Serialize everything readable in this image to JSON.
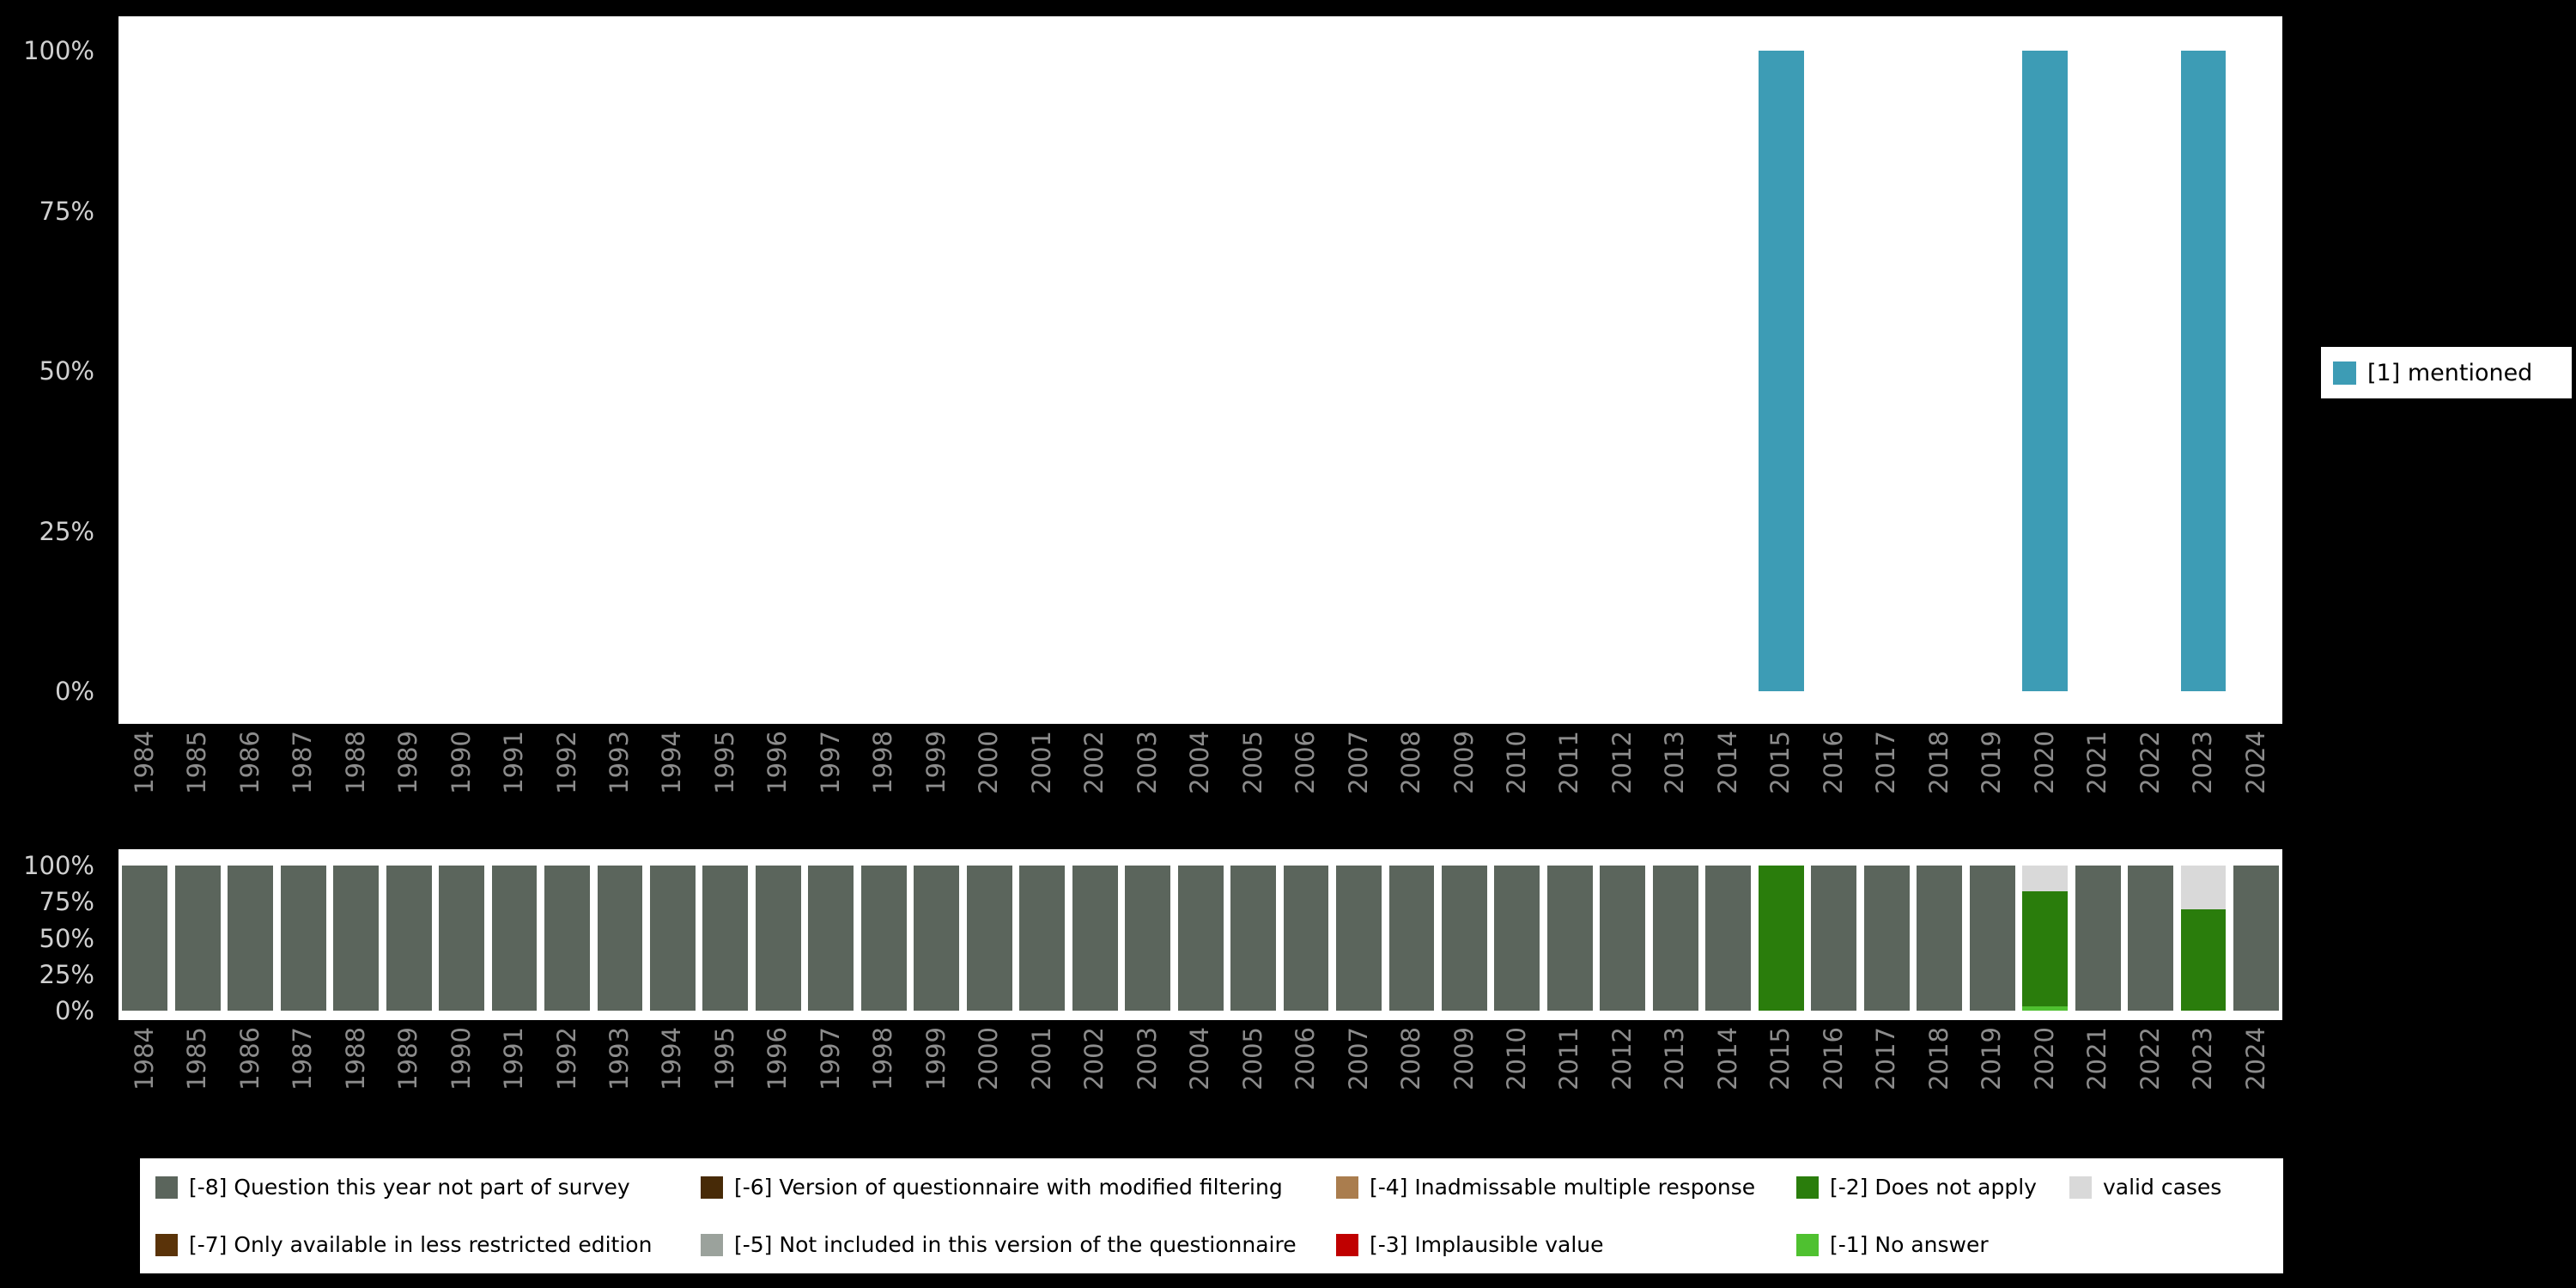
{
  "colors": {
    "mentioned": "#3d9cb5",
    "-8": "#5b655c",
    "-7": "#5a3309",
    "-6": "#472a07",
    "-5": "#9ba29c",
    "-4": "#aa7d4e",
    "-3": "#c00000",
    "-2": "#2a7d0c",
    "-1": "#4fc130",
    "valid": "#d9d9d9",
    "axis_text": "#d0d0d0",
    "year_text": "#8c8c8c",
    "page_background": "#000000",
    "panel_background": "#ffffff"
  },
  "top_legend": {
    "label": "[1] mentioned"
  },
  "chart_data": [
    {
      "type": "bar",
      "title": "",
      "xlabel": "",
      "ylabel": "",
      "ylim": [
        0,
        100
      ],
      "grid": false,
      "legend_position": "right",
      "y_ticks": [
        "100%",
        "75%",
        "50%",
        "25%",
        "0%"
      ],
      "categories": [
        "1984",
        "1985",
        "1986",
        "1987",
        "1988",
        "1989",
        "1990",
        "1991",
        "1992",
        "1993",
        "1994",
        "1995",
        "1996",
        "1997",
        "1998",
        "1999",
        "2000",
        "2001",
        "2002",
        "2003",
        "2004",
        "2005",
        "2006",
        "2007",
        "2008",
        "2009",
        "2010",
        "2011",
        "2012",
        "2013",
        "2014",
        "2015",
        "2016",
        "2017",
        "2018",
        "2019",
        "2020",
        "2021",
        "2022",
        "2023",
        "2024"
      ],
      "series": [
        {
          "name": "[1] mentioned",
          "color_key": "mentioned",
          "values": [
            0,
            0,
            0,
            0,
            0,
            0,
            0,
            0,
            0,
            0,
            0,
            0,
            0,
            0,
            0,
            0,
            0,
            0,
            0,
            0,
            0,
            0,
            0,
            0,
            0,
            0,
            0,
            0,
            0,
            0,
            0,
            100,
            0,
            0,
            0,
            0,
            100,
            0,
            0,
            100,
            0
          ]
        }
      ]
    },
    {
      "type": "stacked-bar",
      "title": "",
      "xlabel": "",
      "ylabel": "",
      "ylim": [
        0,
        100
      ],
      "grid": false,
      "y_ticks": [
        "100%",
        "75%",
        "50%",
        "25%",
        "0%"
      ],
      "categories": [
        "1984",
        "1985",
        "1986",
        "1987",
        "1988",
        "1989",
        "1990",
        "1991",
        "1992",
        "1993",
        "1994",
        "1995",
        "1996",
        "1997",
        "1998",
        "1999",
        "2000",
        "2001",
        "2002",
        "2003",
        "2004",
        "2005",
        "2006",
        "2007",
        "2008",
        "2009",
        "2010",
        "2011",
        "2012",
        "2013",
        "2014",
        "2015",
        "2016",
        "2017",
        "2018",
        "2019",
        "2020",
        "2021",
        "2022",
        "2023",
        "2024"
      ],
      "stacks": [
        [
          {
            "key": "-8",
            "pct": 100
          }
        ],
        [
          {
            "key": "-8",
            "pct": 100
          }
        ],
        [
          {
            "key": "-8",
            "pct": 100
          }
        ],
        [
          {
            "key": "-8",
            "pct": 100
          }
        ],
        [
          {
            "key": "-8",
            "pct": 100
          }
        ],
        [
          {
            "key": "-8",
            "pct": 100
          }
        ],
        [
          {
            "key": "-8",
            "pct": 100
          }
        ],
        [
          {
            "key": "-8",
            "pct": 100
          }
        ],
        [
          {
            "key": "-8",
            "pct": 100
          }
        ],
        [
          {
            "key": "-8",
            "pct": 100
          }
        ],
        [
          {
            "key": "-8",
            "pct": 100
          }
        ],
        [
          {
            "key": "-8",
            "pct": 100
          }
        ],
        [
          {
            "key": "-8",
            "pct": 100
          }
        ],
        [
          {
            "key": "-8",
            "pct": 100
          }
        ],
        [
          {
            "key": "-8",
            "pct": 100
          }
        ],
        [
          {
            "key": "-8",
            "pct": 100
          }
        ],
        [
          {
            "key": "-8",
            "pct": 100
          }
        ],
        [
          {
            "key": "-8",
            "pct": 100
          }
        ],
        [
          {
            "key": "-8",
            "pct": 100
          }
        ],
        [
          {
            "key": "-8",
            "pct": 100
          }
        ],
        [
          {
            "key": "-8",
            "pct": 100
          }
        ],
        [
          {
            "key": "-8",
            "pct": 100
          }
        ],
        [
          {
            "key": "-8",
            "pct": 100
          }
        ],
        [
          {
            "key": "-8",
            "pct": 100
          }
        ],
        [
          {
            "key": "-8",
            "pct": 100
          }
        ],
        [
          {
            "key": "-8",
            "pct": 100
          }
        ],
        [
          {
            "key": "-8",
            "pct": 100
          }
        ],
        [
          {
            "key": "-8",
            "pct": 100
          }
        ],
        [
          {
            "key": "-8",
            "pct": 100
          }
        ],
        [
          {
            "key": "-8",
            "pct": 100
          }
        ],
        [
          {
            "key": "-8",
            "pct": 100
          }
        ],
        [
          {
            "key": "-2",
            "pct": 100
          }
        ],
        [
          {
            "key": "-8",
            "pct": 100
          }
        ],
        [
          {
            "key": "-8",
            "pct": 100
          }
        ],
        [
          {
            "key": "-8",
            "pct": 100
          }
        ],
        [
          {
            "key": "-8",
            "pct": 100
          }
        ],
        [
          {
            "key": "-1",
            "pct": 3
          },
          {
            "key": "-2",
            "pct": 79
          },
          {
            "key": "valid",
            "pct": 18
          }
        ],
        [
          {
            "key": "-8",
            "pct": 100
          }
        ],
        [
          {
            "key": "-8",
            "pct": 100
          }
        ],
        [
          {
            "key": "-2",
            "pct": 70
          },
          {
            "key": "valid",
            "pct": 30
          }
        ],
        [
          {
            "key": "-8",
            "pct": 100
          }
        ]
      ]
    }
  ],
  "missing_legend": {
    "items": [
      {
        "key": "-8",
        "label": "[-8] Question this year not part of survey"
      },
      {
        "key": "-7",
        "label": "[-7] Only available in less restricted edition"
      },
      {
        "key": "-6",
        "label": "[-6] Version of questionnaire with modified filtering"
      },
      {
        "key": "-5",
        "label": "[-5] Not included in this version of the questionnaire"
      },
      {
        "key": "-4",
        "label": "[-4] Inadmissable multiple response"
      },
      {
        "key": "-3",
        "label": "[-3] Implausible value"
      },
      {
        "key": "-2",
        "label": "[-2] Does not apply"
      },
      {
        "key": "-1",
        "label": "[-1] No answer"
      },
      {
        "key": "valid",
        "label": "valid cases"
      }
    ]
  }
}
